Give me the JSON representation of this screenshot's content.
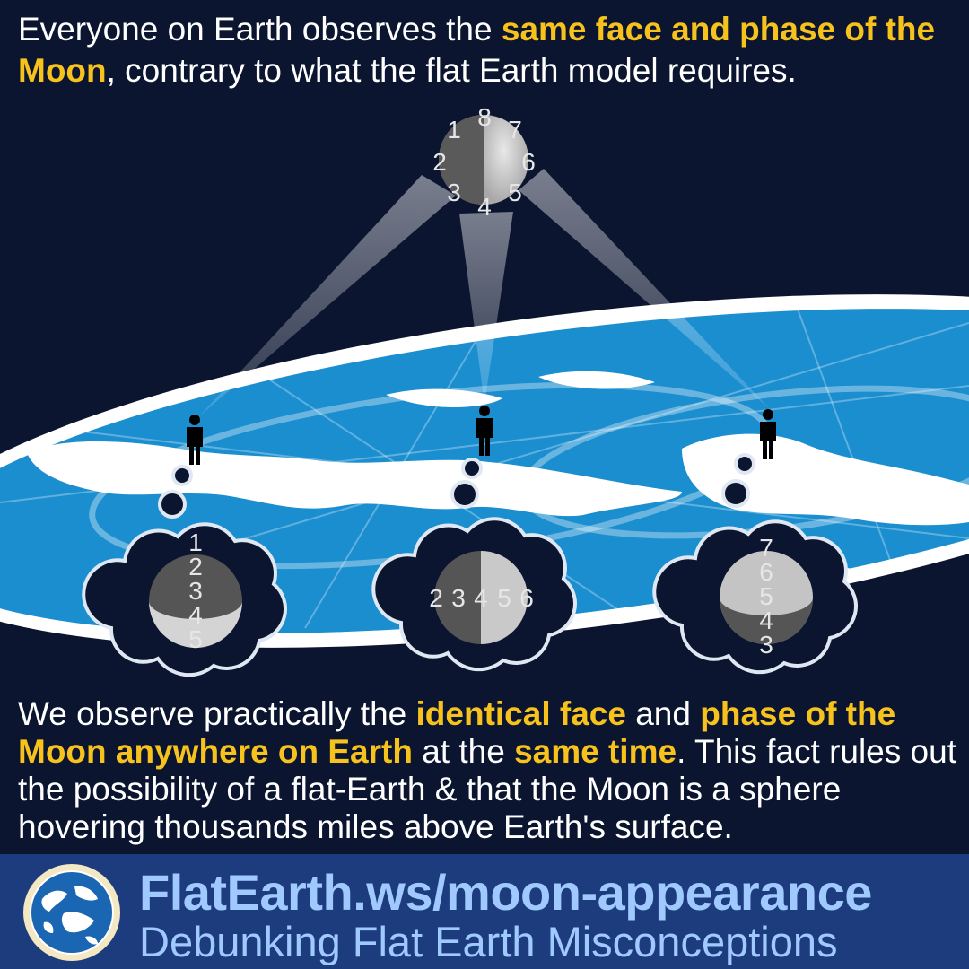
{
  "headline": {
    "part1": "Everyone on Earth observes the ",
    "highlight1": "same face and phase of the Moon",
    "part2": ", contrary to what the flat Earth model requires."
  },
  "moon": {
    "labels": [
      "1",
      "2",
      "3",
      "4",
      "5",
      "6",
      "7",
      "8"
    ]
  },
  "thought_bubbles": [
    {
      "labels": [
        "1",
        "2",
        "3",
        "4",
        "5"
      ]
    },
    {
      "labels": [
        "2",
        "3",
        "4",
        "5",
        "6"
      ]
    },
    {
      "labels": [
        "7",
        "6",
        "5",
        "4",
        "3"
      ]
    }
  ],
  "body": {
    "t1": "We observe practically the ",
    "h1": "identical face",
    "t2": " and ",
    "h2": "phase of the Moon anywhere on Earth",
    "t3": " at the ",
    "h3": "same time",
    "t4": ". This fact rules out the possibility of a flat-Earth & that the Moon is a sphere hovering thousands miles above Earth's surface."
  },
  "footer": {
    "url": "FlatEarth.ws/moon-appearance",
    "tagline": "Debunking Flat Earth Misconceptions"
  },
  "colors": {
    "background": "#0b1530",
    "highlight": "#f6c21b",
    "ocean": "#1b8ed0",
    "footer_bg": "#1d3c7d",
    "footer_text": "#9fc9ff"
  }
}
